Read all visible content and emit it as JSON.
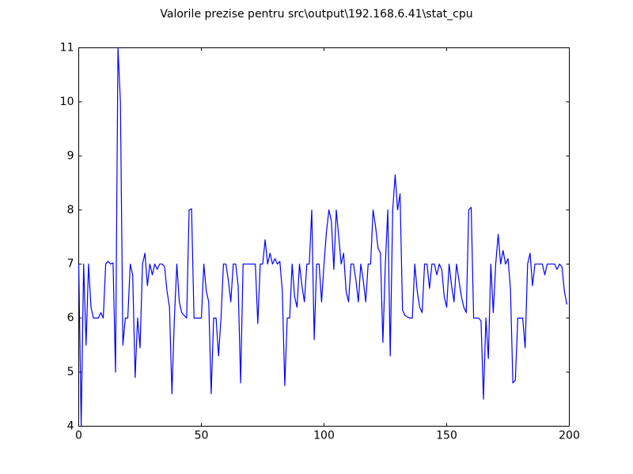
{
  "chart_data": {
    "type": "line",
    "title": "Valorile prezise pentru src\\output\\192.168.6.41\\stat_cpu",
    "x": [
      0,
      1,
      2,
      3,
      4,
      5,
      6,
      7,
      8,
      9,
      10,
      11,
      12,
      13,
      14,
      15,
      16,
      17,
      18,
      19,
      20,
      21,
      22,
      23,
      24,
      25,
      26,
      27,
      28,
      29,
      30,
      31,
      32,
      33,
      34,
      35,
      36,
      37,
      38,
      39,
      40,
      41,
      42,
      43,
      44,
      45,
      46,
      47,
      48,
      49,
      50,
      51,
      52,
      53,
      54,
      55,
      56,
      57,
      58,
      59,
      60,
      61,
      62,
      63,
      64,
      65,
      66,
      67,
      68,
      69,
      70,
      71,
      72,
      73,
      74,
      75,
      76,
      77,
      78,
      79,
      80,
      81,
      82,
      83,
      84,
      85,
      86,
      87,
      88,
      89,
      90,
      91,
      92,
      93,
      94,
      95,
      96,
      97,
      98,
      99,
      100,
      101,
      102,
      103,
      104,
      105,
      106,
      107,
      108,
      109,
      110,
      111,
      112,
      113,
      114,
      115,
      116,
      117,
      118,
      119,
      120,
      121,
      122,
      123,
      124,
      125,
      126,
      127,
      128,
      129,
      130,
      131,
      132,
      133,
      134,
      135,
      136,
      137,
      138,
      139,
      140,
      141,
      142,
      143,
      144,
      145,
      146,
      147,
      148,
      149,
      150,
      151,
      152,
      153,
      154,
      155,
      156,
      157,
      158,
      159,
      160,
      161,
      162,
      163,
      164,
      165,
      166,
      167,
      168,
      169,
      170,
      171,
      172,
      173,
      174,
      175,
      176,
      177,
      178,
      179,
      180,
      181,
      182,
      183,
      184,
      185,
      186,
      187,
      188,
      189,
      190,
      191,
      192,
      193,
      194,
      195,
      196,
      197,
      198,
      199
    ],
    "series": [
      {
        "color": "#0000ff",
        "values": [
          7,
          4,
          7,
          5.5,
          7,
          6.2,
          6,
          6,
          6,
          6.1,
          6,
          7,
          7.05,
          7,
          7.02,
          5,
          11,
          10,
          5.5,
          6,
          6,
          7,
          6.8,
          4.9,
          6,
          5.45,
          7,
          7.2,
          6.6,
          7,
          6.8,
          7,
          6.9,
          7,
          7,
          6.95,
          6.5,
          6.2,
          4.6,
          6,
          7,
          6.3,
          6.1,
          6.05,
          6,
          8,
          8.02,
          6,
          6,
          6,
          6,
          7,
          6.5,
          6.3,
          4.6,
          6,
          6,
          5.3,
          6,
          7,
          7,
          6.7,
          6.3,
          7,
          7,
          6.6,
          4.8,
          7,
          7,
          7,
          7,
          7,
          7,
          5.9,
          7,
          7,
          7.45,
          7,
          7.2,
          7,
          7.1,
          7,
          7.05,
          6.5,
          4.75,
          6,
          6,
          7,
          6.4,
          6.2,
          7,
          6.6,
          6.3,
          7,
          7,
          8,
          5.6,
          7,
          7,
          6.3,
          7,
          7.6,
          8,
          7.8,
          6.9,
          8,
          7.5,
          7,
          7.2,
          6.5,
          6.3,
          7,
          7,
          6.7,
          6.3,
          7,
          6.7,
          6.3,
          7,
          7,
          8,
          7.7,
          7.3,
          7.2,
          5.55,
          7,
          8,
          5.3,
          8,
          8.65,
          8,
          8.3,
          6.15,
          6.05,
          6.02,
          6,
          6,
          7,
          6.5,
          6.2,
          6.1,
          7,
          7,
          6.55,
          7,
          7,
          6.8,
          7,
          6.9,
          6.4,
          6.2,
          7,
          6.6,
          6.3,
          7,
          6.7,
          6.4,
          6.2,
          6.1,
          8,
          8.05,
          6,
          6,
          6,
          5.95,
          4.5,
          6,
          5.25,
          7,
          6.1,
          7,
          7.55,
          7,
          7.25,
          7,
          7.1,
          6.55,
          4.8,
          4.85,
          6,
          6,
          6,
          5.45,
          7,
          7.2,
          6.6,
          7,
          7,
          7,
          7,
          6.8,
          7,
          7,
          7,
          7,
          6.9,
          7,
          6.95,
          6.5,
          6.25
        ]
      }
    ],
    "xlim": [
      0,
      200
    ],
    "ylim": [
      4,
      11
    ],
    "xticks": [
      0,
      50,
      100,
      150,
      200
    ],
    "yticks": [
      4,
      5,
      6,
      7,
      8,
      9,
      10,
      11
    ]
  }
}
